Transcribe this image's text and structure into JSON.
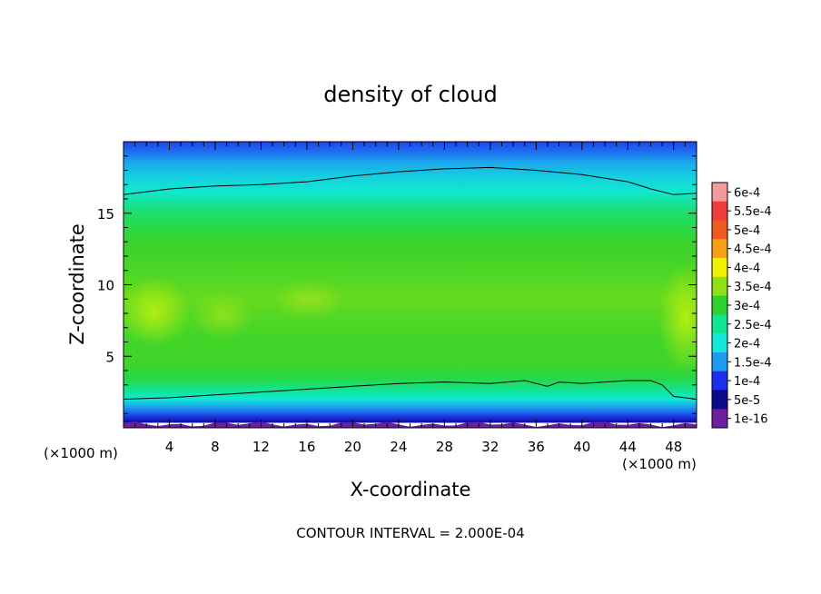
{
  "chart_data": {
    "type": "heatmap",
    "title": "density of cloud",
    "xlabel": "X-coordinate",
    "ylabel": "Z-coordinate",
    "x_unit_left": "(×1000 m)",
    "x_unit_right": "(×1000 m)",
    "xlim": [
      0,
      50
    ],
    "ylim": [
      0,
      20
    ],
    "xticks": [
      4,
      8,
      12,
      16,
      20,
      24,
      28,
      32,
      36,
      40,
      44,
      48
    ],
    "yticks": [
      5,
      10,
      15
    ],
    "footer": "CONTOUR INTERVAL = 2.000E-04",
    "legend_position": "right",
    "colorbar": {
      "labels": [
        "6e-4",
        "5.5e-4",
        "5e-4",
        "4.5e-4",
        "4e-4",
        "3.5e-4",
        "3e-4",
        "2.5e-4",
        "2e-4",
        "1.5e-4",
        "1e-4",
        "5e-5",
        "1e-16"
      ],
      "colors": [
        "#f49a9a",
        "#f03c3c",
        "#f05a1e",
        "#f7a014",
        "#f0f000",
        "#8fe014",
        "#2ed22e",
        "#10e690",
        "#10e8d8",
        "#1e9bf0",
        "#1e2ef0",
        "#0a0a8c",
        "#6e1ea0"
      ]
    },
    "contour_levels": [
      0.0002
    ],
    "contour_lines": [
      {
        "level": 0.0002,
        "points": [
          [
            0,
            2.0
          ],
          [
            4,
            2.1
          ],
          [
            8,
            2.3
          ],
          [
            12,
            2.5
          ],
          [
            16,
            2.7
          ],
          [
            20,
            2.9
          ],
          [
            24,
            3.1
          ],
          [
            28,
            3.2
          ],
          [
            32,
            3.1
          ],
          [
            35,
            3.3
          ],
          [
            36,
            3.1
          ],
          [
            37,
            2.9
          ],
          [
            38,
            3.2
          ],
          [
            40,
            3.1
          ],
          [
            44,
            3.3
          ],
          [
            46,
            3.3
          ],
          [
            47,
            3.0
          ],
          [
            48,
            2.2
          ],
          [
            50,
            2.0
          ]
        ]
      },
      {
        "level": 0.0002,
        "points": [
          [
            0,
            16.3
          ],
          [
            4,
            16.7
          ],
          [
            8,
            16.9
          ],
          [
            12,
            17.0
          ],
          [
            16,
            17.2
          ],
          [
            20,
            17.6
          ],
          [
            24,
            17.9
          ],
          [
            28,
            18.1
          ],
          [
            32,
            18.2
          ],
          [
            36,
            18.0
          ],
          [
            40,
            17.7
          ],
          [
            44,
            17.2
          ],
          [
            46,
            16.7
          ],
          [
            48,
            16.3
          ],
          [
            50,
            16.4
          ]
        ]
      }
    ],
    "field_profile": {
      "z": [
        0,
        0.3,
        0.6,
        1.0,
        1.5,
        2.0,
        2.5,
        3.5,
        4.5,
        6,
        8,
        9,
        11,
        13,
        15,
        16.5,
        17.5,
        18.5,
        19.3,
        20
      ],
      "value": [
        1e-16,
        5e-05,
        8e-05,
        0.00012,
        0.00016,
        0.0002,
        0.00024,
        0.00029,
        0.00031,
        0.00031,
        0.00032,
        0.00033,
        0.000315,
        0.000305,
        0.00027,
        0.000205,
        0.000185,
        0.00016,
        0.00013,
        0.00011
      ]
    }
  }
}
